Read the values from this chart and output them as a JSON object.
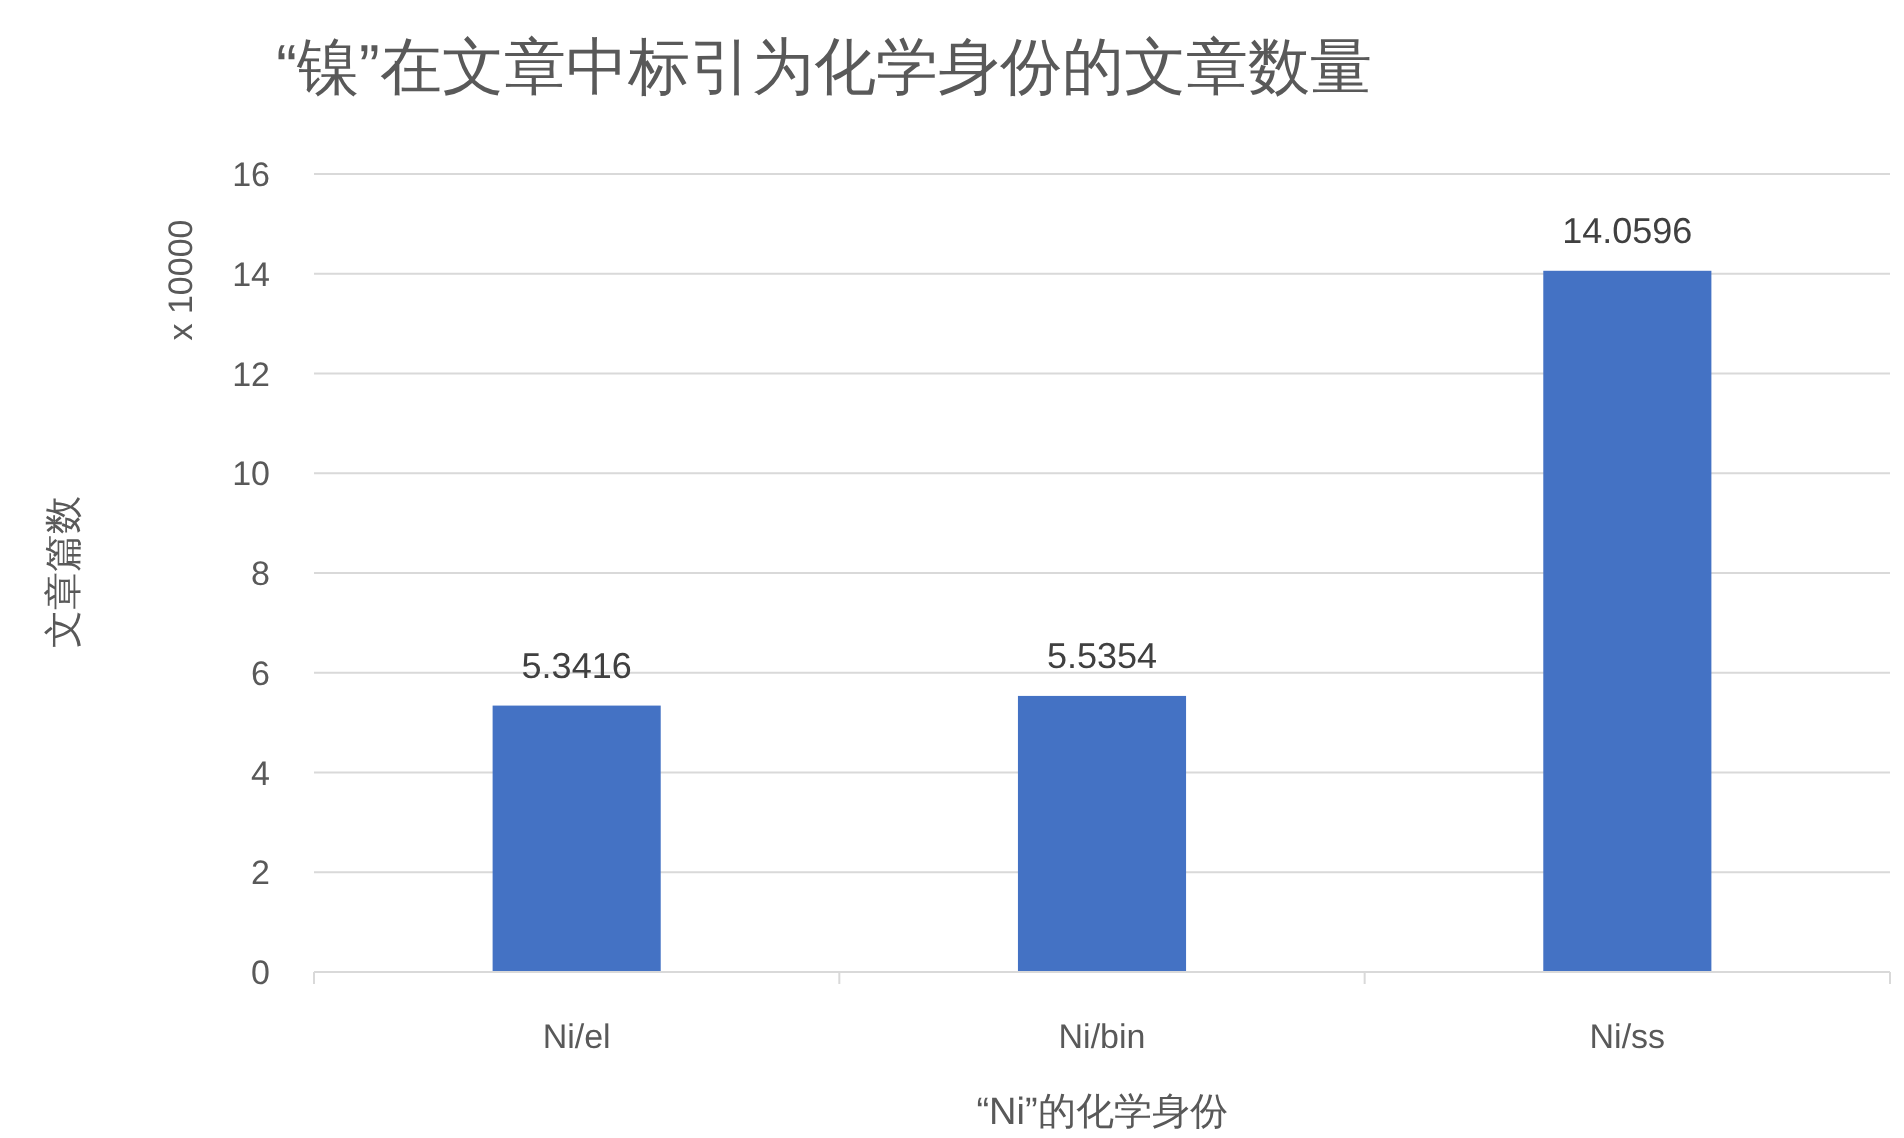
{
  "chart_data": {
    "type": "bar",
    "title": "“镍”在文章中标引为化学身份的文章数量",
    "xlabel": "“Ni”的化学身份",
    "ylabel": "文章篇数",
    "annotations": [
      "x 10000"
    ],
    "categories": [
      "Ni/el",
      "Ni/bin",
      "Ni/ss"
    ],
    "values": [
      5.3416,
      5.5354,
      14.0596
    ],
    "color": "#4472c4",
    "ylim": [
      0,
      16
    ],
    "yticks": [
      0,
      2,
      4,
      6,
      8,
      10,
      12,
      14,
      16
    ],
    "grid": "y",
    "data_labels": true
  }
}
